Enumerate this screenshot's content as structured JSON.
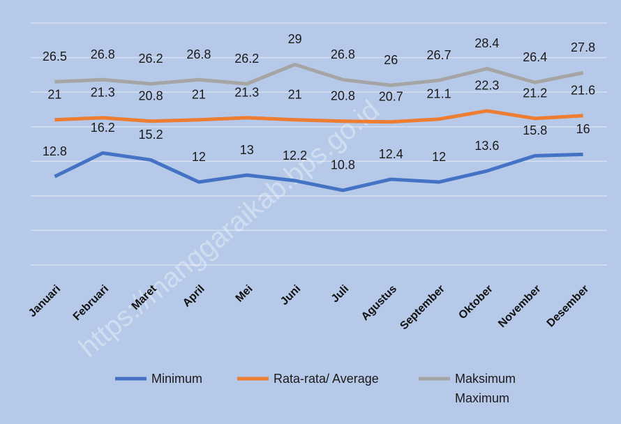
{
  "chart_data": {
    "type": "line",
    "categories": [
      "Januari",
      "Februari",
      "Maret",
      "April",
      "Mei",
      "Juni",
      "Juli",
      "Agustus",
      "September",
      "Oktober",
      "November",
      "Desember"
    ],
    "series": [
      {
        "name": "Minimum",
        "color": "#4472c4",
        "values": [
          12.8,
          16.2,
          15.2,
          12,
          13,
          12.2,
          10.8,
          12.4,
          12,
          13.6,
          15.8,
          16
        ]
      },
      {
        "name": "Rata-rata/ Average",
        "color": "#ed7d31",
        "values": [
          21,
          21.3,
          20.8,
          21,
          21.3,
          21,
          20.8,
          20.7,
          21.1,
          22.3,
          21.2,
          21.6
        ]
      },
      {
        "name": "Maksimum\nMaximum",
        "color": "#a5a5a5",
        "values": [
          26.5,
          26.8,
          26.2,
          26.8,
          26.2,
          29,
          26.8,
          26,
          26.7,
          28.4,
          26.4,
          27.8
        ]
      }
    ],
    "ylim": [
      0,
      35
    ],
    "yticks": [
      0,
      5,
      10,
      15,
      20,
      25,
      30,
      35
    ],
    "grid": true,
    "watermark": "https://manggaraikab.bps.go.id"
  }
}
